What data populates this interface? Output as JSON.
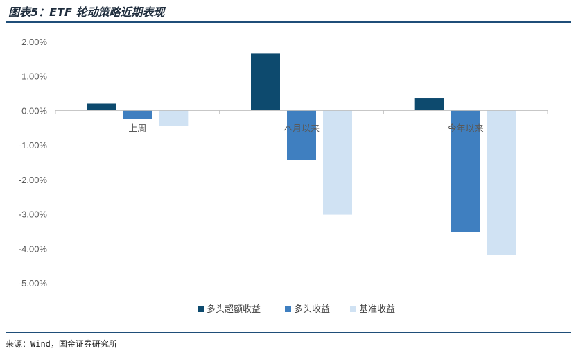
{
  "figure": {
    "title": "图表5：ETF 轮动策略近期表现",
    "source": "来源：Wind，国金证券研究所"
  },
  "colors": {
    "series_1": "#0d4a6e",
    "series_2": "#3f7fc0",
    "series_3": "#d0e2f3",
    "axis": "#bfbfbf",
    "rule": "#1f4e79"
  },
  "chart_data": {
    "type": "bar",
    "title": "",
    "xlabel": "",
    "ylabel": "",
    "categories": [
      "上周",
      "本月以来",
      "今年以来"
    ],
    "series": [
      {
        "name": "多头超额收益",
        "values": [
          0.2,
          1.65,
          0.35
        ]
      },
      {
        "name": "多头收益",
        "values": [
          -0.25,
          -1.42,
          -3.52
        ]
      },
      {
        "name": "基准收益",
        "values": [
          -0.45,
          -3.02,
          -4.18
        ]
      }
    ],
    "ylim": [
      -5,
      2
    ],
    "yticks": [
      2,
      1,
      0,
      -1,
      -2,
      -3,
      -4,
      -5
    ],
    "ytick_labels": [
      "2.00%",
      "1.00%",
      "0.00%",
      "-1.00%",
      "-2.00%",
      "-3.00%",
      "-4.00%",
      "-5.00%"
    ],
    "grid": false,
    "legend_position": "bottom"
  }
}
